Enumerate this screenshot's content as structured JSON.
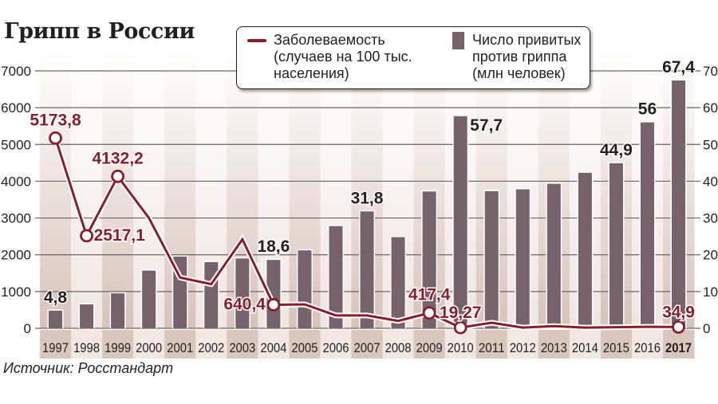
{
  "title": "Грипп в России",
  "source": "Источник: Росстандарт",
  "legend": {
    "line_label": "Заболеваемость\n(случаев на 100 тыс.\nнаселения)",
    "bar_label": "Число привитых\nпротив гриппа\n(млн человек)"
  },
  "colors": {
    "line": "#8a1c2b",
    "bar": "#75626a",
    "band_dark": "#d9c7be",
    "band_light": "#f1e8e3",
    "grid": "#6d6566",
    "text": "#231f20"
  },
  "chart_data": {
    "type": "bar+line",
    "title": "Грипп в России",
    "categories": [
      "1997",
      "1998",
      "1999",
      "2000",
      "2001",
      "2002",
      "2003",
      "2004",
      "2005",
      "2006",
      "2007",
      "2008",
      "2009",
      "2010",
      "2011",
      "2012",
      "2013",
      "2014",
      "2015",
      "2016",
      "2017"
    ],
    "series": [
      {
        "name": "Заболеваемость (случаев на 100 тыс. населения)",
        "type": "line",
        "axis": "left",
        "values": [
          5173.8,
          2517.1,
          4132.2,
          3000,
          1380,
          1200,
          2420,
          640.4,
          650,
          350,
          350,
          200,
          417.4,
          19.27,
          150,
          20,
          60,
          20,
          30,
          40,
          34.9
        ],
        "labeled_points": {
          "1997": "5173,8",
          "1998": "2517,1",
          "1999": "4132,2",
          "2004": "640,4",
          "2009": "417,4",
          "2010": "19,27",
          "2017": "34,9"
        }
      },
      {
        "name": "Число привитых против гриппа (млн человек)",
        "type": "bar",
        "axis": "right",
        "values": [
          4.8,
          6.5,
          9.5,
          15.7,
          19.5,
          18.0,
          19.0,
          18.6,
          21.2,
          27.8,
          31.8,
          24.8,
          37.2,
          57.7,
          37.3,
          37.8,
          39.3,
          42.3,
          44.9,
          56,
          67.4
        ],
        "labeled_points": {
          "1997": "4,8",
          "2004": "18,6",
          "2007": "31,8",
          "2010": "57,7",
          "2015": "44,9",
          "2016": "56",
          "2017": "67,4"
        }
      }
    ],
    "left_axis": {
      "ticks": [
        "0",
        "1000",
        "2000",
        "3000",
        "4000",
        "5000",
        "6000",
        "7000"
      ],
      "ylim": [
        0,
        7000
      ]
    },
    "right_axis": {
      "ticks": [
        "0",
        "10",
        "20",
        "30",
        "40",
        "50",
        "60",
        "70"
      ],
      "ylim": [
        0,
        70
      ]
    },
    "grid": true,
    "legend_position": "top-center",
    "xlabel": "",
    "ylabel": ""
  }
}
